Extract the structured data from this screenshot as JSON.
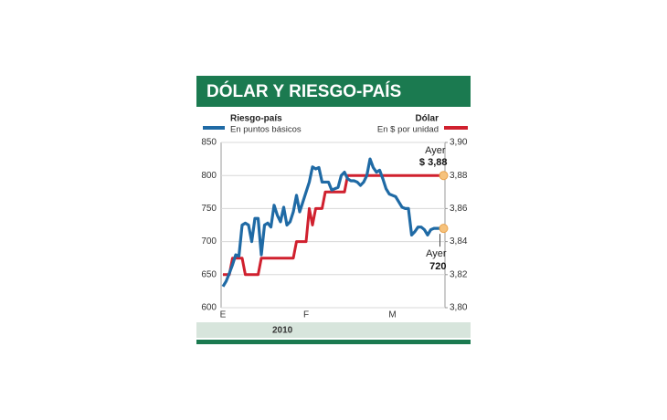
{
  "chart_data": {
    "type": "line",
    "title": "DÓLAR Y RIESGO-PAÍS",
    "x_label": "2010",
    "categories": [
      "E",
      null,
      null,
      null,
      null,
      null,
      null,
      null,
      null,
      null,
      null,
      null,
      null,
      null,
      null,
      null,
      null,
      null,
      null,
      null,
      null,
      null,
      null,
      null,
      null,
      null,
      "F",
      null,
      null,
      null,
      null,
      null,
      null,
      null,
      null,
      null,
      null,
      null,
      null,
      null,
      null,
      null,
      null,
      null,
      null,
      null,
      null,
      null,
      null,
      null,
      null,
      null,
      null,
      "M",
      null,
      null,
      null,
      null,
      null,
      null,
      null,
      null,
      null,
      null,
      null,
      null,
      null,
      null,
      null,
      null
    ],
    "series": [
      {
        "name": "Riesgo-país",
        "note": "En puntos básicos",
        "color": "#1f6aa5",
        "values": [
          632,
          640,
          652,
          665,
          680,
          678,
          725,
          728,
          725,
          700,
          735,
          735,
          680,
          725,
          728,
          722,
          755,
          740,
          730,
          752,
          725,
          730,
          745,
          770,
          745,
          760,
          775,
          790,
          813,
          810,
          812,
          790,
          790,
          790,
          778,
          780,
          782,
          800,
          805,
          795,
          792,
          792,
          790,
          785,
          790,
          800,
          825,
          812,
          805,
          808,
          795,
          780,
          772,
          770,
          768,
          760,
          752,
          750,
          750,
          710,
          715,
          722,
          722,
          718,
          710,
          718,
          720,
          720,
          720,
          720
        ]
      },
      {
        "name": "Dólar",
        "note": "En $ por unidad",
        "color": "#d0202e",
        "axis": "y2",
        "values": [
          3.82,
          3.82,
          3.82,
          3.83,
          3.83,
          3.83,
          3.83,
          3.82,
          3.82,
          3.82,
          3.82,
          3.82,
          3.83,
          3.83,
          3.83,
          3.83,
          3.83,
          3.83,
          3.83,
          3.83,
          3.83,
          3.83,
          3.83,
          3.84,
          3.84,
          3.84,
          3.84,
          3.86,
          3.85,
          3.86,
          3.86,
          3.86,
          3.87,
          3.87,
          3.87,
          3.87,
          3.87,
          3.87,
          3.87,
          3.88,
          3.88,
          3.88,
          3.88,
          3.88,
          3.88,
          3.88,
          3.88,
          3.88,
          3.88,
          3.88,
          3.88,
          3.88,
          3.88,
          3.88,
          3.88,
          3.88,
          3.88,
          3.88,
          3.88,
          3.88,
          3.88,
          3.88,
          3.88,
          3.88,
          3.88,
          3.88,
          3.88,
          3.88,
          3.88,
          3.88
        ]
      }
    ],
    "ylim": [
      600,
      850
    ],
    "yticks": [
      600,
      650,
      700,
      750,
      800,
      850
    ],
    "y2lim": [
      3.8,
      3.9
    ],
    "y2ticks": [
      {
        "value": 3.8,
        "label": "3,80"
      },
      {
        "value": 3.82,
        "label": "3,82"
      },
      {
        "value": 3.84,
        "label": "3,84"
      },
      {
        "value": 3.86,
        "label": "3,86"
      },
      {
        "value": 3.88,
        "label": "3,88"
      },
      {
        "value": 3.9,
        "label": "3,90"
      }
    ],
    "grid": true,
    "annotations": [
      {
        "series": 1,
        "lines": [
          "Ayer",
          "$ 3,88"
        ]
      },
      {
        "series": 0,
        "lines": [
          "Ayer",
          "720"
        ]
      }
    ]
  }
}
